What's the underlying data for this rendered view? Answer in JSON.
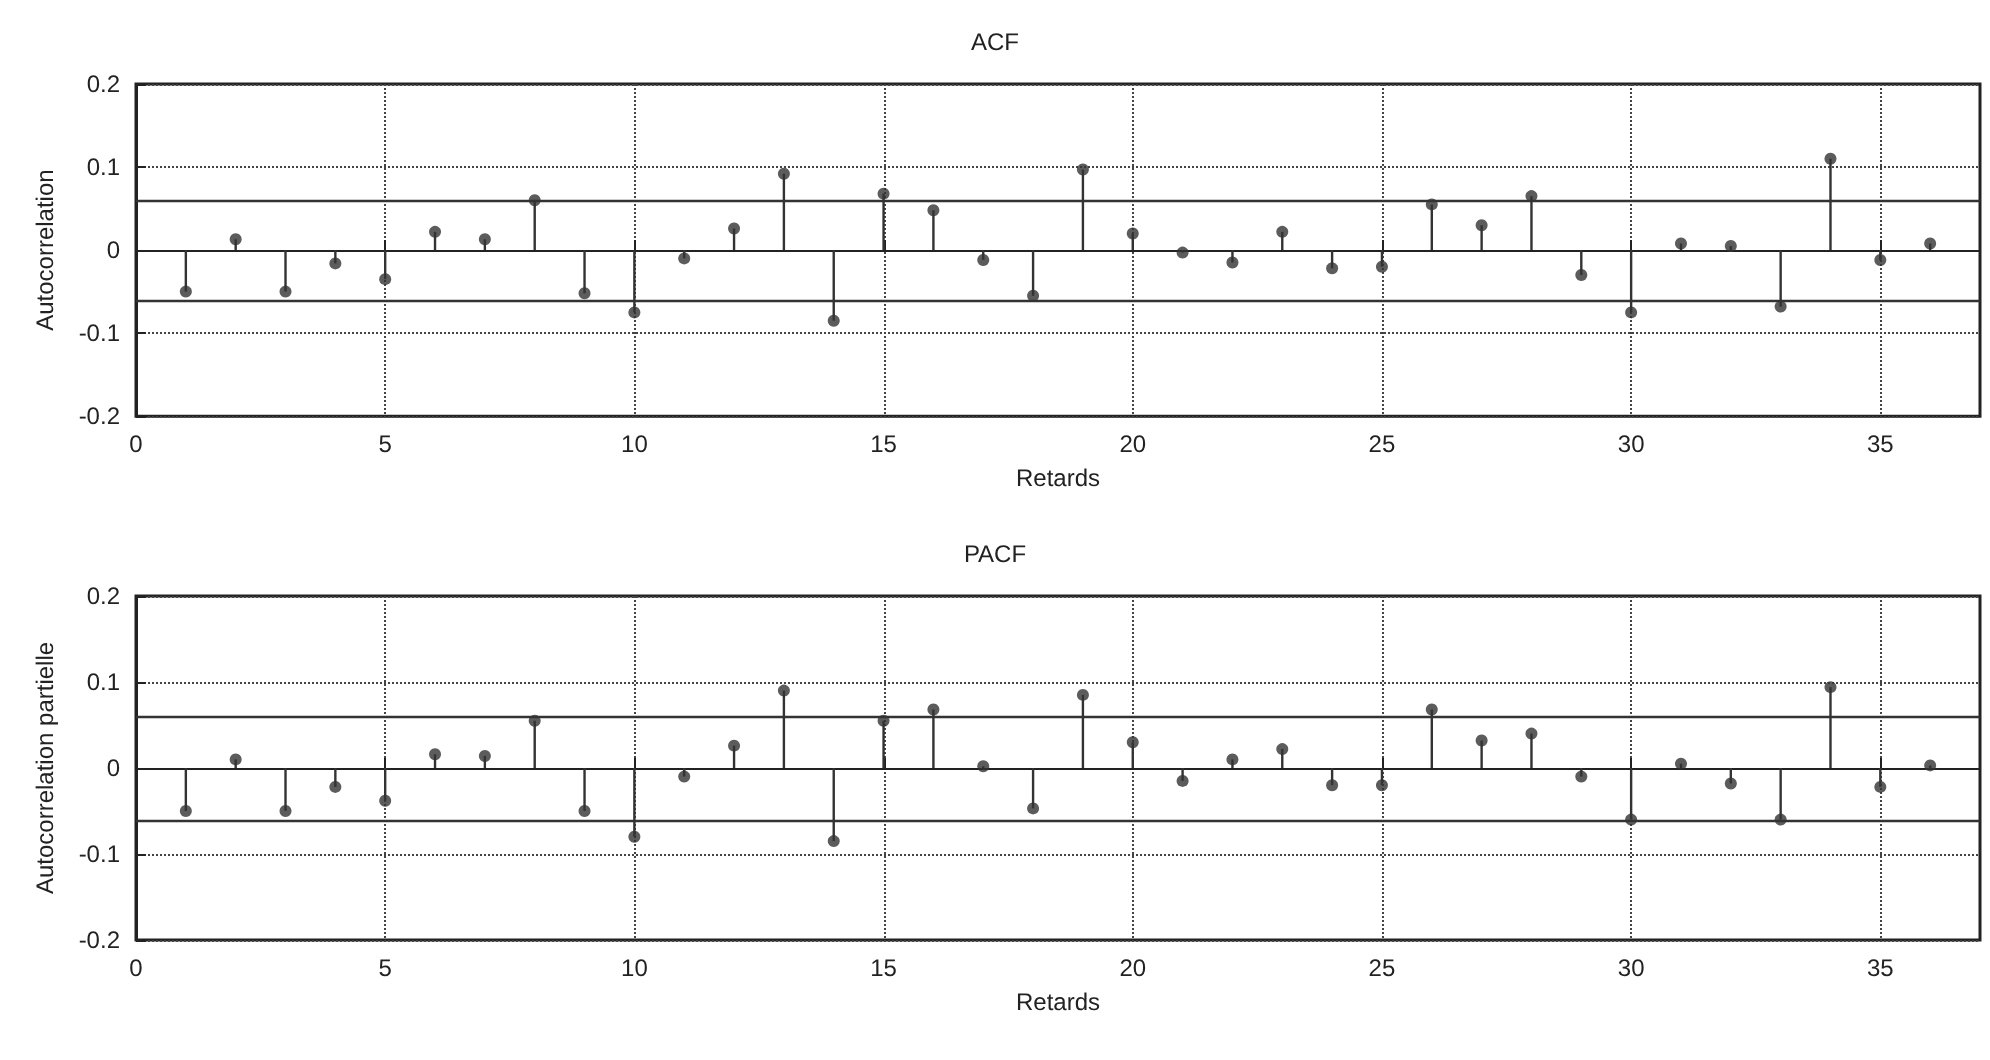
{
  "chart_data": [
    {
      "type": "lollipop",
      "title": "ACF",
      "xlabel": "Retards",
      "ylabel": "Autocorrelation",
      "x": [
        1,
        2,
        3,
        4,
        5,
        6,
        7,
        8,
        9,
        10,
        11,
        12,
        13,
        14,
        15,
        16,
        17,
        18,
        19,
        20,
        21,
        22,
        23,
        24,
        25,
        26,
        27,
        28,
        29,
        30,
        31,
        32,
        33,
        34,
        35,
        36
      ],
      "values": [
        -0.05,
        0.013,
        -0.05,
        -0.016,
        -0.035,
        0.022,
        0.013,
        0.06,
        -0.052,
        -0.075,
        -0.01,
        0.026,
        0.092,
        -0.085,
        0.068,
        0.048,
        -0.012,
        -0.055,
        0.097,
        0.02,
        -0.003,
        -0.015,
        0.022,
        -0.022,
        -0.02,
        0.055,
        0.03,
        0.065,
        -0.03,
        -0.075,
        0.008,
        0.005,
        -0.068,
        0.11,
        -0.012,
        0.008
      ],
      "color": "#333333",
      "marker": "circle",
      "grid": true,
      "xlim": [
        0,
        37
      ],
      "xticks": [
        0,
        5,
        10,
        15,
        20,
        25,
        30,
        35
      ],
      "ylim": [
        -0.2,
        0.2
      ],
      "yticks": [
        -0.2,
        -0.1,
        0,
        0.1,
        0.2
      ],
      "ref_lines": [
        {
          "axis": "y",
          "value": 0.062,
          "color": "#333333",
          "line_style": "solid"
        },
        {
          "axis": "y",
          "value": -0.062,
          "color": "#333333",
          "line_style": "solid"
        }
      ]
    },
    {
      "type": "lollipop",
      "title": "PACF",
      "xlabel": "Retards",
      "ylabel": "Autocorrelation partielle",
      "x": [
        1,
        2,
        3,
        4,
        5,
        6,
        7,
        8,
        9,
        10,
        11,
        12,
        13,
        14,
        15,
        16,
        17,
        18,
        19,
        20,
        21,
        22,
        23,
        24,
        25,
        26,
        27,
        28,
        29,
        30,
        31,
        32,
        33,
        34,
        35,
        36
      ],
      "values": [
        -0.05,
        0.01,
        -0.05,
        -0.022,
        -0.038,
        0.016,
        0.014,
        0.055,
        -0.05,
        -0.08,
        -0.01,
        0.026,
        0.09,
        -0.085,
        0.055,
        0.068,
        0.002,
        -0.047,
        0.085,
        0.03,
        -0.015,
        0.01,
        0.022,
        -0.02,
        -0.02,
        0.068,
        0.032,
        0.04,
        -0.01,
        -0.06,
        0.005,
        -0.018,
        -0.06,
        0.094,
        -0.022,
        0.003
      ],
      "color": "#333333",
      "marker": "circle",
      "grid": true,
      "xlim": [
        0,
        37
      ],
      "xticks": [
        0,
        5,
        10,
        15,
        20,
        25,
        30,
        35
      ],
      "ylim": [
        -0.2,
        0.2
      ],
      "yticks": [
        -0.2,
        -0.1,
        0,
        0.1,
        0.2
      ],
      "ref_lines": [
        {
          "axis": "y",
          "value": 0.062,
          "color": "#333333",
          "line_style": "solid"
        },
        {
          "axis": "y",
          "value": -0.062,
          "color": "#333333",
          "line_style": "solid"
        }
      ]
    }
  ]
}
